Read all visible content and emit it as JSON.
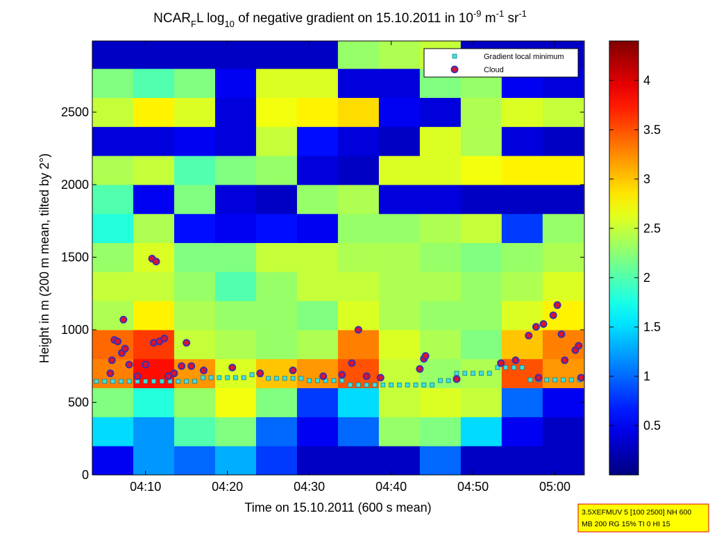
{
  "chart_data": {
    "type": "heatmap",
    "title_parts": [
      "NCAR",
      "F",
      "L log",
      "10",
      " of negative gradient on 15.10.2011 in 10",
      "-9",
      " m",
      "-1",
      " sr",
      "-1"
    ],
    "x_label": "Time on 15.10.2011 (600 s mean)",
    "y_label": "Height in m (200 m mean, tilted by 2°)",
    "xlim": [
      3.5,
      63.6
    ],
    "xticks": [
      {
        "value": 10,
        "label": "04:10"
      },
      {
        "value": 20,
        "label": "04:20"
      },
      {
        "value": 30,
        "label": "04:30"
      },
      {
        "value": 40,
        "label": "04:40"
      },
      {
        "value": 50,
        "label": "04:50"
      },
      {
        "value": 60,
        "label": "05:00"
      }
    ],
    "ylim": [
      0,
      2990
    ],
    "yticks": [
      0,
      500,
      1000,
      1500,
      2000,
      2500
    ],
    "clim": [
      0,
      4.4
    ],
    "cticks": [
      0.5,
      1,
      1.5,
      2,
      2.5,
      3,
      3.5,
      4
    ],
    "heatmap_x": [
      6,
      11,
      16,
      21,
      26,
      31,
      36,
      41,
      46,
      51,
      56,
      61
    ],
    "heatmap_y": [
      100,
      300,
      500,
      700,
      900,
      1100,
      1300,
      1500,
      1700,
      1900,
      2100,
      2300,
      2500,
      2700,
      2900
    ],
    "z": [
      [
        0.5,
        1.2,
        1.0,
        1.3,
        0.8,
        0.3,
        0.3,
        0.3,
        1.0,
        0.3,
        0.3,
        0.3
      ],
      [
        1.5,
        1.2,
        2.0,
        2.2,
        1.0,
        0.5,
        1.0,
        2.3,
        2.2,
        1.5,
        0.5,
        0.3
      ],
      [
        2.2,
        1.8,
        2.3,
        2.7,
        2.2,
        0.8,
        1.5,
        2.5,
        2.6,
        2.5,
        1.0,
        0.5
      ],
      [
        3.3,
        3.8,
        3.2,
        2.6,
        3.0,
        3.2,
        3.5,
        2.5,
        2.3,
        2.4,
        3.5,
        3.2
      ],
      [
        3.4,
        3.6,
        2.5,
        2.4,
        2.3,
        2.4,
        3.3,
        2.6,
        2.4,
        2.2,
        3.0,
        3.3
      ],
      [
        2.4,
        2.8,
        2.4,
        2.3,
        2.3,
        2.2,
        2.6,
        2.4,
        2.3,
        2.3,
        2.6,
        2.8
      ],
      [
        2.5,
        2.5,
        2.3,
        2.0,
        2.3,
        2.5,
        2.5,
        2.4,
        2.4,
        2.3,
        2.4,
        2.6
      ],
      [
        2.3,
        2.6,
        2.2,
        2.2,
        2.5,
        2.5,
        2.4,
        2.4,
        2.3,
        2.2,
        2.3,
        2.4
      ],
      [
        1.8,
        2.4,
        0.6,
        0.5,
        0.6,
        0.5,
        2.3,
        2.3,
        2.4,
        2.5,
        0.8,
        2.3
      ],
      [
        2.0,
        0.5,
        2.2,
        0.4,
        0.3,
        2.3,
        2.4,
        0.4,
        0.4,
        0.3,
        0.3,
        0.3
      ],
      [
        2.4,
        2.5,
        2.0,
        2.2,
        2.3,
        0.4,
        0.3,
        2.6,
        2.6,
        2.7,
        2.8,
        2.8
      ],
      [
        0.4,
        0.4,
        0.5,
        0.4,
        2.5,
        0.6,
        0.4,
        0.3,
        2.6,
        2.4,
        0.4,
        0.3
      ],
      [
        2.5,
        2.8,
        2.6,
        0.4,
        2.7,
        2.8,
        2.9,
        0.5,
        0.4,
        2.4,
        2.6,
        2.5
      ],
      [
        2.2,
        2.0,
        2.2,
        0.5,
        2.6,
        2.6,
        0.4,
        0.4,
        2.2,
        2.3,
        0.5,
        0.4
      ],
      [
        0.3,
        0.3,
        0.3,
        0.3,
        0.3,
        0.3,
        2.3,
        2.4,
        2.5,
        0.3,
        0.3,
        0.3
      ]
    ],
    "series": [
      {
        "name": "Gradient local minimum",
        "marker": "square",
        "color": "#40e0e0",
        "x": [
          4,
          5,
          6,
          7,
          8,
          9,
          10,
          11,
          12,
          13,
          14,
          15,
          16,
          17,
          18,
          19,
          20,
          21,
          22,
          23,
          24,
          25,
          26,
          27,
          28,
          29,
          30,
          31,
          32,
          33,
          34,
          35,
          36,
          37,
          38,
          39,
          40,
          41,
          42,
          43,
          44,
          45,
          46,
          47,
          48,
          49,
          50,
          51,
          52,
          53,
          54,
          55,
          56,
          57,
          58,
          59,
          60,
          61,
          62,
          63
        ],
        "values": [
          645,
          645,
          645,
          645,
          645,
          645,
          645,
          645,
          645,
          645,
          645,
          645,
          645,
          670,
          670,
          670,
          670,
          670,
          670,
          690,
          690,
          665,
          665,
          665,
          665,
          665,
          650,
          650,
          650,
          650,
          650,
          620,
          620,
          620,
          620,
          620,
          620,
          620,
          620,
          620,
          620,
          620,
          650,
          650,
          700,
          700,
          700,
          700,
          700,
          740,
          740,
          740,
          740,
          655,
          655,
          655,
          655,
          655,
          655,
          655
        ]
      },
      {
        "name": "Cloud",
        "marker": "circle",
        "color": "#e0102a",
        "x": [
          5.7,
          5.9,
          6.2,
          6.6,
          7.3,
          7.1,
          7.5,
          8,
          9,
          10,
          10.8,
          11.3,
          11,
          11.7,
          12.3,
          12.8,
          13.5,
          14.4,
          15,
          15.6,
          17.1,
          20.6,
          24,
          28,
          31.7,
          34,
          35.2,
          36,
          37,
          38.7,
          43.5,
          44,
          44.2,
          48,
          53.4,
          55.2,
          56.8,
          57.7,
          58,
          58.6,
          59.8,
          60.3,
          60.8,
          61.2,
          62.5,
          62.9,
          63.2
        ],
        "values": [
          700,
          790,
          930,
          920,
          1070,
          840,
          870,
          760,
          680,
          760,
          1490,
          1470,
          910,
          920,
          940,
          680,
          700,
          750,
          910,
          750,
          720,
          740,
          700,
          720,
          680,
          690,
          770,
          1000,
          680,
          670,
          730,
          800,
          820,
          660,
          770,
          790,
          960,
          1020,
          670,
          1040,
          1100,
          1170,
          970,
          790,
          860,
          890,
          670
        ]
      }
    ],
    "annotation": [
      "3.5XEFMUV 5 [100 2500] NH 600",
      "MB 200 RG 15% TI 0 HI 15"
    ]
  }
}
